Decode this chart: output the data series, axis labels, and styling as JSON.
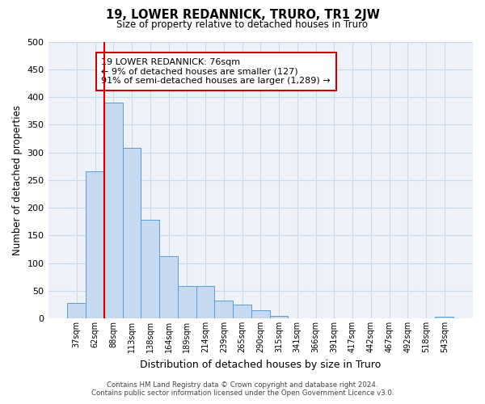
{
  "title": "19, LOWER REDANNICK, TRURO, TR1 2JW",
  "subtitle": "Size of property relative to detached houses in Truro",
  "xlabel": "Distribution of detached houses by size in Truro",
  "ylabel": "Number of detached properties",
  "bin_labels": [
    "37sqm",
    "62sqm",
    "88sqm",
    "113sqm",
    "138sqm",
    "164sqm",
    "189sqm",
    "214sqm",
    "239sqm",
    "265sqm",
    "290sqm",
    "315sqm",
    "341sqm",
    "366sqm",
    "391sqm",
    "417sqm",
    "442sqm",
    "467sqm",
    "492sqm",
    "518sqm",
    "543sqm"
  ],
  "bar_heights": [
    28,
    265,
    390,
    308,
    178,
    113,
    58,
    58,
    32,
    25,
    15,
    5,
    0,
    0,
    0,
    0,
    0,
    0,
    0,
    0,
    3
  ],
  "bar_color": "#c6d9f1",
  "bar_edge_color": "#5b9bd5",
  "grid_color": "#c8d8ea",
  "vline_color": "#cc0000",
  "annotation_title": "19 LOWER REDANNICK: 76sqm",
  "annotation_line1": "← 9% of detached houses are smaller (127)",
  "annotation_line2": "91% of semi-detached houses are larger (1,289) →",
  "annotation_box_color": "#ffffff",
  "annotation_box_edge": "#cc0000",
  "ylim": [
    0,
    500
  ],
  "yticks": [
    0,
    50,
    100,
    150,
    200,
    250,
    300,
    350,
    400,
    450,
    500
  ],
  "footer_line1": "Contains HM Land Registry data © Crown copyright and database right 2024.",
  "footer_line2": "Contains public sector information licensed under the Open Government Licence v3.0.",
  "bg_color": "#ffffff",
  "plot_bg_color": "#eef2f8"
}
